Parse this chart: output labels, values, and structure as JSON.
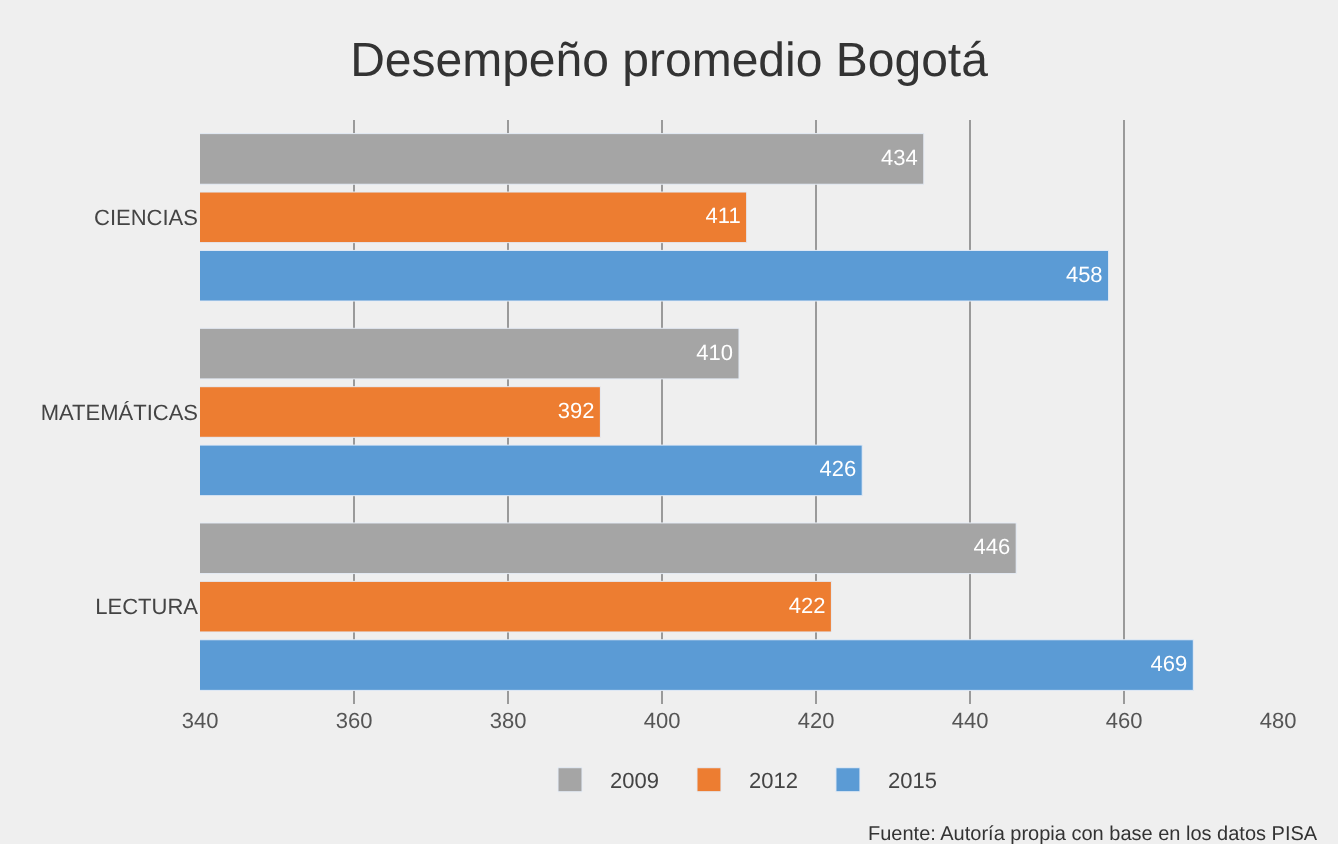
{
  "chart_data": {
    "type": "bar",
    "orientation": "horizontal",
    "title": "Desempeño promedio Bogotá",
    "categories": [
      "CIENCIAS",
      "MATEMÁTICAS",
      "LECTURA"
    ],
    "series": [
      {
        "name": "2009",
        "color": "#a5a5a5",
        "values": [
          434,
          410,
          446
        ]
      },
      {
        "name": "2012",
        "color": "#ed7d31",
        "values": [
          411,
          392,
          422
        ]
      },
      {
        "name": "2015",
        "color": "#5b9bd5",
        "values": [
          458,
          426,
          469
        ]
      }
    ],
    "xlim": [
      340,
      480
    ],
    "xticks": [
      340,
      360,
      380,
      400,
      420,
      440,
      460,
      480
    ],
    "grid": "x",
    "legend": "bottom",
    "data_labels": true,
    "annotations": [
      "Fuente: Autoría propia con base en los datos PISA"
    ]
  }
}
